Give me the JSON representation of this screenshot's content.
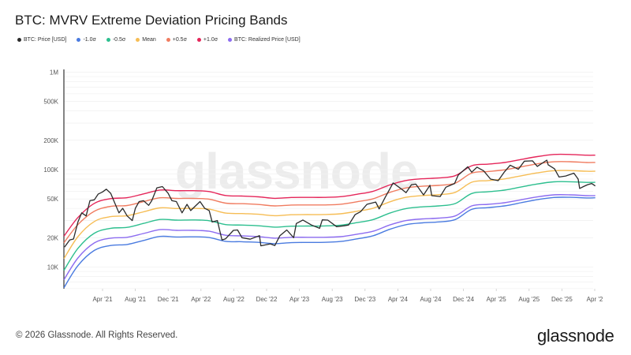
{
  "title": "BTC: MVRV Extreme Deviation Pricing Bands",
  "footer": "© 2026 Glassnode. All Rights Reserved.",
  "logo": "glassnode",
  "watermark": "glassnode",
  "legend": [
    {
      "label": "BTC: Price [USD]",
      "color": "#2b2b2b"
    },
    {
      "label": "-1.0σ",
      "color": "#4a7be0"
    },
    {
      "label": "-0.5σ",
      "color": "#2dbf8f"
    },
    {
      "label": "Mean",
      "color": "#f6bd55"
    },
    {
      "label": "+0.5σ",
      "color": "#f07c60"
    },
    {
      "label": "+1.0σ",
      "color": "#e5265a"
    },
    {
      "label": "BTC: Realized Price [USD]",
      "color": "#8c6cf0"
    }
  ],
  "chart_data": {
    "type": "line",
    "title": "BTC: MVRV Extreme Deviation Pricing Bands",
    "y_scale": "log",
    "ylim": [
      6000,
      1000000
    ],
    "y_ticks": [
      {
        "v": 1000000,
        "label": "1M"
      },
      {
        "v": 500000,
        "label": "500K"
      },
      {
        "v": 200000,
        "label": "200K"
      },
      {
        "v": 100000,
        "label": "100K"
      },
      {
        "v": 50000,
        "label": "50K"
      },
      {
        "v": 20000,
        "label": "20K"
      },
      {
        "v": 10000,
        "label": "10K"
      }
    ],
    "x_ticks": [
      {
        "date": "2021-04-01",
        "label": "Apr '21"
      },
      {
        "date": "2021-08-01",
        "label": "Aug '21"
      },
      {
        "date": "2021-12-01",
        "label": "Dec '21"
      },
      {
        "date": "2022-04-01",
        "label": "Apr '22"
      },
      {
        "date": "2022-08-01",
        "label": "Aug '22"
      },
      {
        "date": "2022-12-01",
        "label": "Dec '22"
      },
      {
        "date": "2023-04-01",
        "label": "Apr '23"
      },
      {
        "date": "2023-08-01",
        "label": "Aug '23"
      },
      {
        "date": "2023-12-01",
        "label": "Dec '23"
      },
      {
        "date": "2024-04-01",
        "label": "Apr '24"
      },
      {
        "date": "2024-08-01",
        "label": "Aug '24"
      },
      {
        "date": "2024-12-01",
        "label": "Dec '24"
      },
      {
        "date": "2025-04-01",
        "label": "Apr '25"
      },
      {
        "date": "2025-08-01",
        "label": "Aug '25"
      },
      {
        "date": "2025-12-01",
        "label": "Dec '25"
      },
      {
        "date": "2026-04-01",
        "label": "Apr '2"
      }
    ],
    "grid": true,
    "legend_position": "top-left",
    "band_dates": [
      "2020-11-10",
      "2021-01-01",
      "2021-03-01",
      "2021-05-01",
      "2021-07-01",
      "2021-09-01",
      "2021-11-01",
      "2022-01-01",
      "2022-03-01",
      "2022-05-01",
      "2022-07-01",
      "2022-09-01",
      "2022-11-01",
      "2023-01-01",
      "2023-03-01",
      "2023-05-01",
      "2023-07-01",
      "2023-09-01",
      "2023-11-01",
      "2024-01-01",
      "2024-03-01",
      "2024-05-01",
      "2024-07-01",
      "2024-09-01",
      "2024-11-01",
      "2025-01-01",
      "2025-03-01",
      "2025-05-01",
      "2025-07-01",
      "2025-09-01",
      "2025-11-01",
      "2026-01-01",
      "2026-03-01",
      "2026-04-03"
    ],
    "series": [
      {
        "name": "-1.0σ",
        "color": "#4a7be0",
        "values": [
          6140,
          10340,
          14810,
          16650,
          17050,
          18740,
          20620,
          20350,
          20440,
          20080,
          18360,
          18180,
          17920,
          17360,
          17800,
          17880,
          17940,
          18290,
          19440,
          20950,
          24380,
          27210,
          28390,
          29070,
          30750,
          39050,
          40700,
          42410,
          45670,
          49140,
          51740,
          51960,
          51180,
          51400
        ]
      },
      {
        "name": "BTC: Realized Price [USD]",
        "color": "#8c6cf0",
        "values": [
          7400,
          12400,
          17700,
          19800,
          20200,
          22100,
          24200,
          23800,
          23800,
          23300,
          21200,
          20900,
          20500,
          19800,
          20200,
          20200,
          20200,
          20500,
          21700,
          23300,
          27000,
          30000,
          31200,
          31800,
          33500,
          42400,
          44000,
          45700,
          49000,
          52500,
          55100,
          55100,
          54100,
          54100
        ]
      },
      {
        "name": "-0.5σ",
        "color": "#2dbf8f",
        "values": [
          9250,
          15550,
          22250,
          24970,
          25530,
          28020,
          30780,
          30350,
          30440,
          29870,
          27260,
          26960,
          26530,
          25680,
          26280,
          26360,
          26420,
          26900,
          28560,
          30730,
          35720,
          39810,
          41500,
          42420,
          44820,
          56860,
          59180,
          61600,
          66250,
          71190,
          74880,
          75100,
          73900,
          74120
        ]
      },
      {
        "name": "Mean",
        "color": "#f6bd55",
        "values": [
          12210,
          20510,
          29350,
          32910,
          33650,
          36910,
          40490,
          39910,
          40010,
          39260,
          35810,
          35380,
          34790,
          33680,
          34440,
          34520,
          34600,
          35200,
          37350,
          40190,
          46680,
          51990,
          54190,
          55360,
          58460,
          74160,
          77130,
          80290,
          86290,
          92660,
          97470,
          97640,
          96080,
          96300
        ]
      },
      {
        "name": "+0.5σ",
        "color": "#f07c60",
        "values": [
          17760,
          27280,
          37440,
          41920,
          42820,
          46900,
          51400,
          50620,
          50670,
          49680,
          45240,
          44660,
          43850,
          42390,
          43310,
          43350,
          43410,
          44100,
          46740,
          50230,
          58290,
          64830,
          67520,
          68880,
          72630,
          92050,
          95610,
          99440,
          106720,
          114500,
          120280,
          120390,
          118370,
          118480
        ]
      },
      {
        "name": "+1.0σ",
        "color": "#e5265a",
        "values": [
          20720,
          32240,
          45030,
          50390,
          51450,
          56330,
          61730,
          60760,
          60790,
          59550,
          54230,
          53500,
          52520,
          50750,
          51810,
          51850,
          51890,
          52710,
          55830,
          60000,
          69550,
          77340,
          80500,
          82110,
          86560,
          109650,
          113830,
          118320,
          126960,
          136130,
          142980,
          143040,
          140550,
          140660
        ]
      }
    ],
    "price": {
      "name": "BTC: Price [USD]",
      "color": "#2b2b2b",
      "points": [
        [
          "2020-11-12",
          16000
        ],
        [
          "2020-12-01",
          19000
        ],
        [
          "2020-12-15",
          19400
        ],
        [
          "2021-01-01",
          29000
        ],
        [
          "2021-01-15",
          36000
        ],
        [
          "2021-02-01",
          33500
        ],
        [
          "2021-02-15",
          48000
        ],
        [
          "2021-03-01",
          49000
        ],
        [
          "2021-03-15",
          56000
        ],
        [
          "2021-04-01",
          59000
        ],
        [
          "2021-04-15",
          63000
        ],
        [
          "2021-05-01",
          57000
        ],
        [
          "2021-05-15",
          46000
        ],
        [
          "2021-06-01",
          36000
        ],
        [
          "2021-06-15",
          40000
        ],
        [
          "2021-07-01",
          33500
        ],
        [
          "2021-07-20",
          30000
        ],
        [
          "2021-08-01",
          40000
        ],
        [
          "2021-08-15",
          47000
        ],
        [
          "2021-09-01",
          48000
        ],
        [
          "2021-09-20",
          43000
        ],
        [
          "2021-10-01",
          48000
        ],
        [
          "2021-10-20",
          65000
        ],
        [
          "2021-11-10",
          67000
        ],
        [
          "2021-12-01",
          57000
        ],
        [
          "2021-12-15",
          48000
        ],
        [
          "2022-01-01",
          47000
        ],
        [
          "2022-01-22",
          36000
        ],
        [
          "2022-02-10",
          44000
        ],
        [
          "2022-02-24",
          38000
        ],
        [
          "2022-03-28",
          47000
        ],
        [
          "2022-04-15",
          40000
        ],
        [
          "2022-05-01",
          38000
        ],
        [
          "2022-05-12",
          29000
        ],
        [
          "2022-06-01",
          30000
        ],
        [
          "2022-06-18",
          19000
        ],
        [
          "2022-07-01",
          19500
        ],
        [
          "2022-07-30",
          23800
        ],
        [
          "2022-08-15",
          24000
        ],
        [
          "2022-09-01",
          20000
        ],
        [
          "2022-10-01",
          19300
        ],
        [
          "2022-11-05",
          21000
        ],
        [
          "2022-11-10",
          16500
        ],
        [
          "2022-12-15",
          17300
        ],
        [
          "2023-01-01",
          16600
        ],
        [
          "2023-01-20",
          21000
        ],
        [
          "2023-02-15",
          24000
        ],
        [
          "2023-03-10",
          20000
        ],
        [
          "2023-03-20",
          28000
        ],
        [
          "2023-04-14",
          30400
        ],
        [
          "2023-05-15",
          27000
        ],
        [
          "2023-06-15",
          25000
        ],
        [
          "2023-06-25",
          30500
        ],
        [
          "2023-07-15",
          30300
        ],
        [
          "2023-08-17",
          26000
        ],
        [
          "2023-09-15",
          26500
        ],
        [
          "2023-10-01",
          27000
        ],
        [
          "2023-10-25",
          34500
        ],
        [
          "2023-11-15",
          37000
        ],
        [
          "2023-12-08",
          44000
        ],
        [
          "2024-01-10",
          46500
        ],
        [
          "2024-01-23",
          39500
        ],
        [
          "2024-02-15",
          52000
        ],
        [
          "2024-03-14",
          73000
        ],
        [
          "2024-04-15",
          63000
        ],
        [
          "2024-05-01",
          58000
        ],
        [
          "2024-05-21",
          70000
        ],
        [
          "2024-06-07",
          71000
        ],
        [
          "2024-07-05",
          55000
        ],
        [
          "2024-07-29",
          69000
        ],
        [
          "2024-08-05",
          54000
        ],
        [
          "2024-09-06",
          53000
        ],
        [
          "2024-09-27",
          66000
        ],
        [
          "2024-10-29",
          72000
        ],
        [
          "2024-11-12",
          88000
        ],
        [
          "2024-12-17",
          107000
        ],
        [
          "2025-01-01",
          94000
        ],
        [
          "2025-01-21",
          106000
        ],
        [
          "2025-02-15",
          97000
        ],
        [
          "2025-03-10",
          80000
        ],
        [
          "2025-04-08",
          77000
        ],
        [
          "2025-05-01",
          95000
        ],
        [
          "2025-05-22",
          111000
        ],
        [
          "2025-06-22",
          101000
        ],
        [
          "2025-07-14",
          122000
        ],
        [
          "2025-08-14",
          123000
        ],
        [
          "2025-09-01",
          108000
        ],
        [
          "2025-10-06",
          125000
        ],
        [
          "2025-10-11",
          112000
        ],
        [
          "2025-11-04",
          102000
        ],
        [
          "2025-11-21",
          84000
        ],
        [
          "2025-12-15",
          86000
        ],
        [
          "2026-01-15",
          92000
        ],
        [
          "2026-01-31",
          80000
        ],
        [
          "2026-02-06",
          64000
        ],
        [
          "2026-02-20",
          67000
        ],
        [
          "2026-03-05",
          70000
        ],
        [
          "2026-03-20",
          72000
        ],
        [
          "2026-04-03",
          68000
        ]
      ]
    }
  }
}
